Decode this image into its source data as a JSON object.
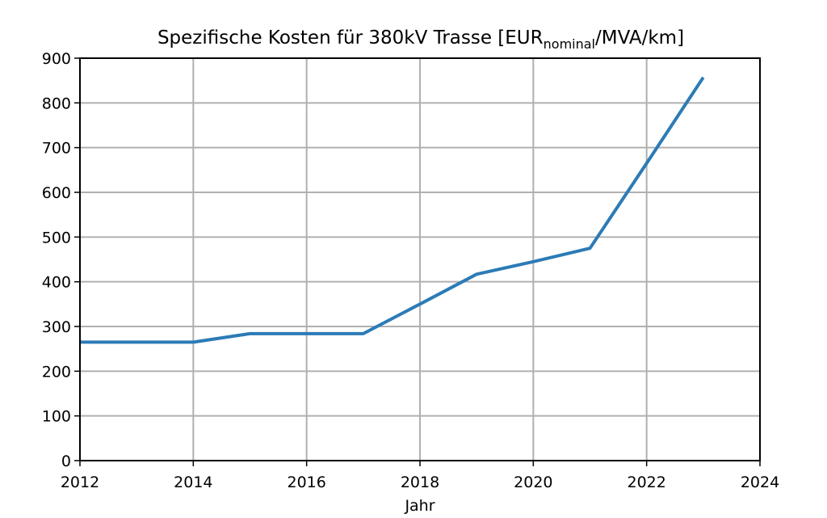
{
  "chart_data": {
    "type": "line",
    "title": "Spezifische Kosten für 380kV Trasse [EUR",
    "title_subscript": "nominal",
    "title_suffix": "/MVA/km]",
    "xlabel": "Jahr",
    "ylabel": "",
    "xlim": [
      2012,
      2024
    ],
    "ylim": [
      0,
      900
    ],
    "x_ticks": [
      2012,
      2014,
      2016,
      2018,
      2020,
      2022,
      2024
    ],
    "y_ticks": [
      0,
      100,
      200,
      300,
      400,
      500,
      600,
      700,
      800,
      900
    ],
    "grid": true,
    "series": [
      {
        "color": "#2c7bb6",
        "x": [
          2012,
          2014,
          2015,
          2016,
          2017,
          2018,
          2019,
          2020,
          2021,
          2022,
          2023
        ],
        "y": [
          265,
          265,
          284,
          284,
          284,
          350,
          417,
          445,
          475,
          665,
          857
        ]
      }
    ]
  }
}
